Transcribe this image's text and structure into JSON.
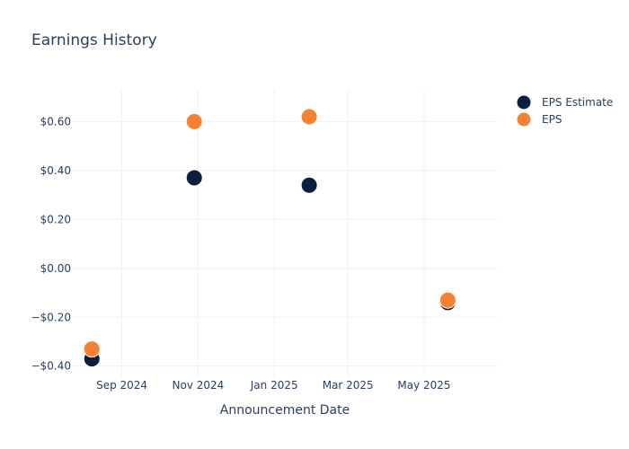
{
  "chart_data": {
    "type": "scatter",
    "title": "Earnings History",
    "xlabel": "Announcement Date",
    "ylabel": "",
    "x_ticks": [
      {
        "date": "2024-09-01",
        "label": "Sep 2024"
      },
      {
        "date": "2024-11-01",
        "label": "Nov 2024"
      },
      {
        "date": "2025-01-01",
        "label": "Jan 2025"
      },
      {
        "date": "2025-03-01",
        "label": "Mar 2025"
      },
      {
        "date": "2025-05-01",
        "label": "May 2025"
      }
    ],
    "y_ticks": [
      {
        "value": 0.6,
        "label": "$0.60"
      },
      {
        "value": 0.4,
        "label": "$0.40"
      },
      {
        "value": 0.2,
        "label": "$0.20"
      },
      {
        "value": 0.0,
        "label": "$0.00"
      },
      {
        "value": -0.2,
        "label": "−$0.20"
      },
      {
        "value": -0.4,
        "label": "−$0.40"
      }
    ],
    "xlim": [
      "2024-07-23",
      "2025-06-29"
    ],
    "ylim": [
      -0.445,
      0.73
    ],
    "grid": true,
    "legend_position": "top-right",
    "series": [
      {
        "name": "EPS Estimate",
        "color": "#0b1f3f",
        "points": [
          {
            "x": "2024-08-08",
            "y": -0.37
          },
          {
            "x": "2024-10-29",
            "y": 0.37
          },
          {
            "x": "2025-01-29",
            "y": 0.34
          },
          {
            "x": "2025-05-20",
            "y": -0.14
          }
        ]
      },
      {
        "name": "EPS",
        "color": "#f58232",
        "points": [
          {
            "x": "2024-08-08",
            "y": -0.33
          },
          {
            "x": "2024-10-29",
            "y": 0.6
          },
          {
            "x": "2025-01-29",
            "y": 0.62
          },
          {
            "x": "2025-05-20",
            "y": -0.13
          }
        ]
      }
    ]
  }
}
